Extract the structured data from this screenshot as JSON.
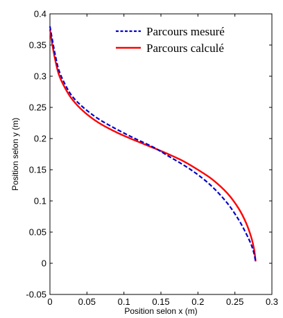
{
  "chart_data": {
    "type": "line",
    "xlabel": "Position selon x (m)",
    "ylabel": "Position selon y (m)",
    "xlim": [
      0,
      0.3
    ],
    "ylim": [
      -0.05,
      0.4
    ],
    "xticks": [
      0,
      0.05,
      0.1,
      0.15,
      0.2,
      0.25,
      0.3
    ],
    "yticks": [
      -0.05,
      0,
      0.05,
      0.1,
      0.15,
      0.2,
      0.25,
      0.3,
      0.35,
      0.4
    ],
    "xtick_labels": [
      "0",
      "0.05",
      "0.1",
      "0.15",
      "0.2",
      "0.25",
      "0.3"
    ],
    "ytick_labels": [
      "-0.05",
      "0",
      "0.05",
      "0.1",
      "0.15",
      "0.2",
      "0.25",
      "0.3",
      "0.35",
      "0.4"
    ],
    "grid": false,
    "legend_position": "top-right",
    "series": [
      {
        "name": "Parcours mesuré",
        "color": "#0000cc",
        "style": "dashed",
        "x": [
          0.0,
          0.003,
          0.007,
          0.012,
          0.02,
          0.03,
          0.045,
          0.065,
          0.09,
          0.115,
          0.14,
          0.16,
          0.18,
          0.2,
          0.22,
          0.24,
          0.255,
          0.265,
          0.272,
          0.276,
          0.278
        ],
        "y": [
          0.38,
          0.36,
          0.335,
          0.31,
          0.288,
          0.268,
          0.25,
          0.232,
          0.215,
          0.2,
          0.186,
          0.172,
          0.158,
          0.142,
          0.122,
          0.096,
          0.07,
          0.048,
          0.03,
          0.015,
          0.002
        ]
      },
      {
        "name": "Parcours calculé",
        "color": "#ff0000",
        "style": "solid",
        "x": [
          0.0,
          0.003,
          0.007,
          0.012,
          0.02,
          0.03,
          0.045,
          0.065,
          0.09,
          0.115,
          0.14,
          0.16,
          0.18,
          0.2,
          0.22,
          0.24,
          0.255,
          0.265,
          0.272,
          0.276,
          0.278
        ],
        "y": [
          0.375,
          0.352,
          0.327,
          0.303,
          0.282,
          0.263,
          0.244,
          0.226,
          0.21,
          0.197,
          0.185,
          0.175,
          0.164,
          0.15,
          0.134,
          0.112,
          0.088,
          0.065,
          0.042,
          0.022,
          0.003
        ]
      }
    ]
  }
}
